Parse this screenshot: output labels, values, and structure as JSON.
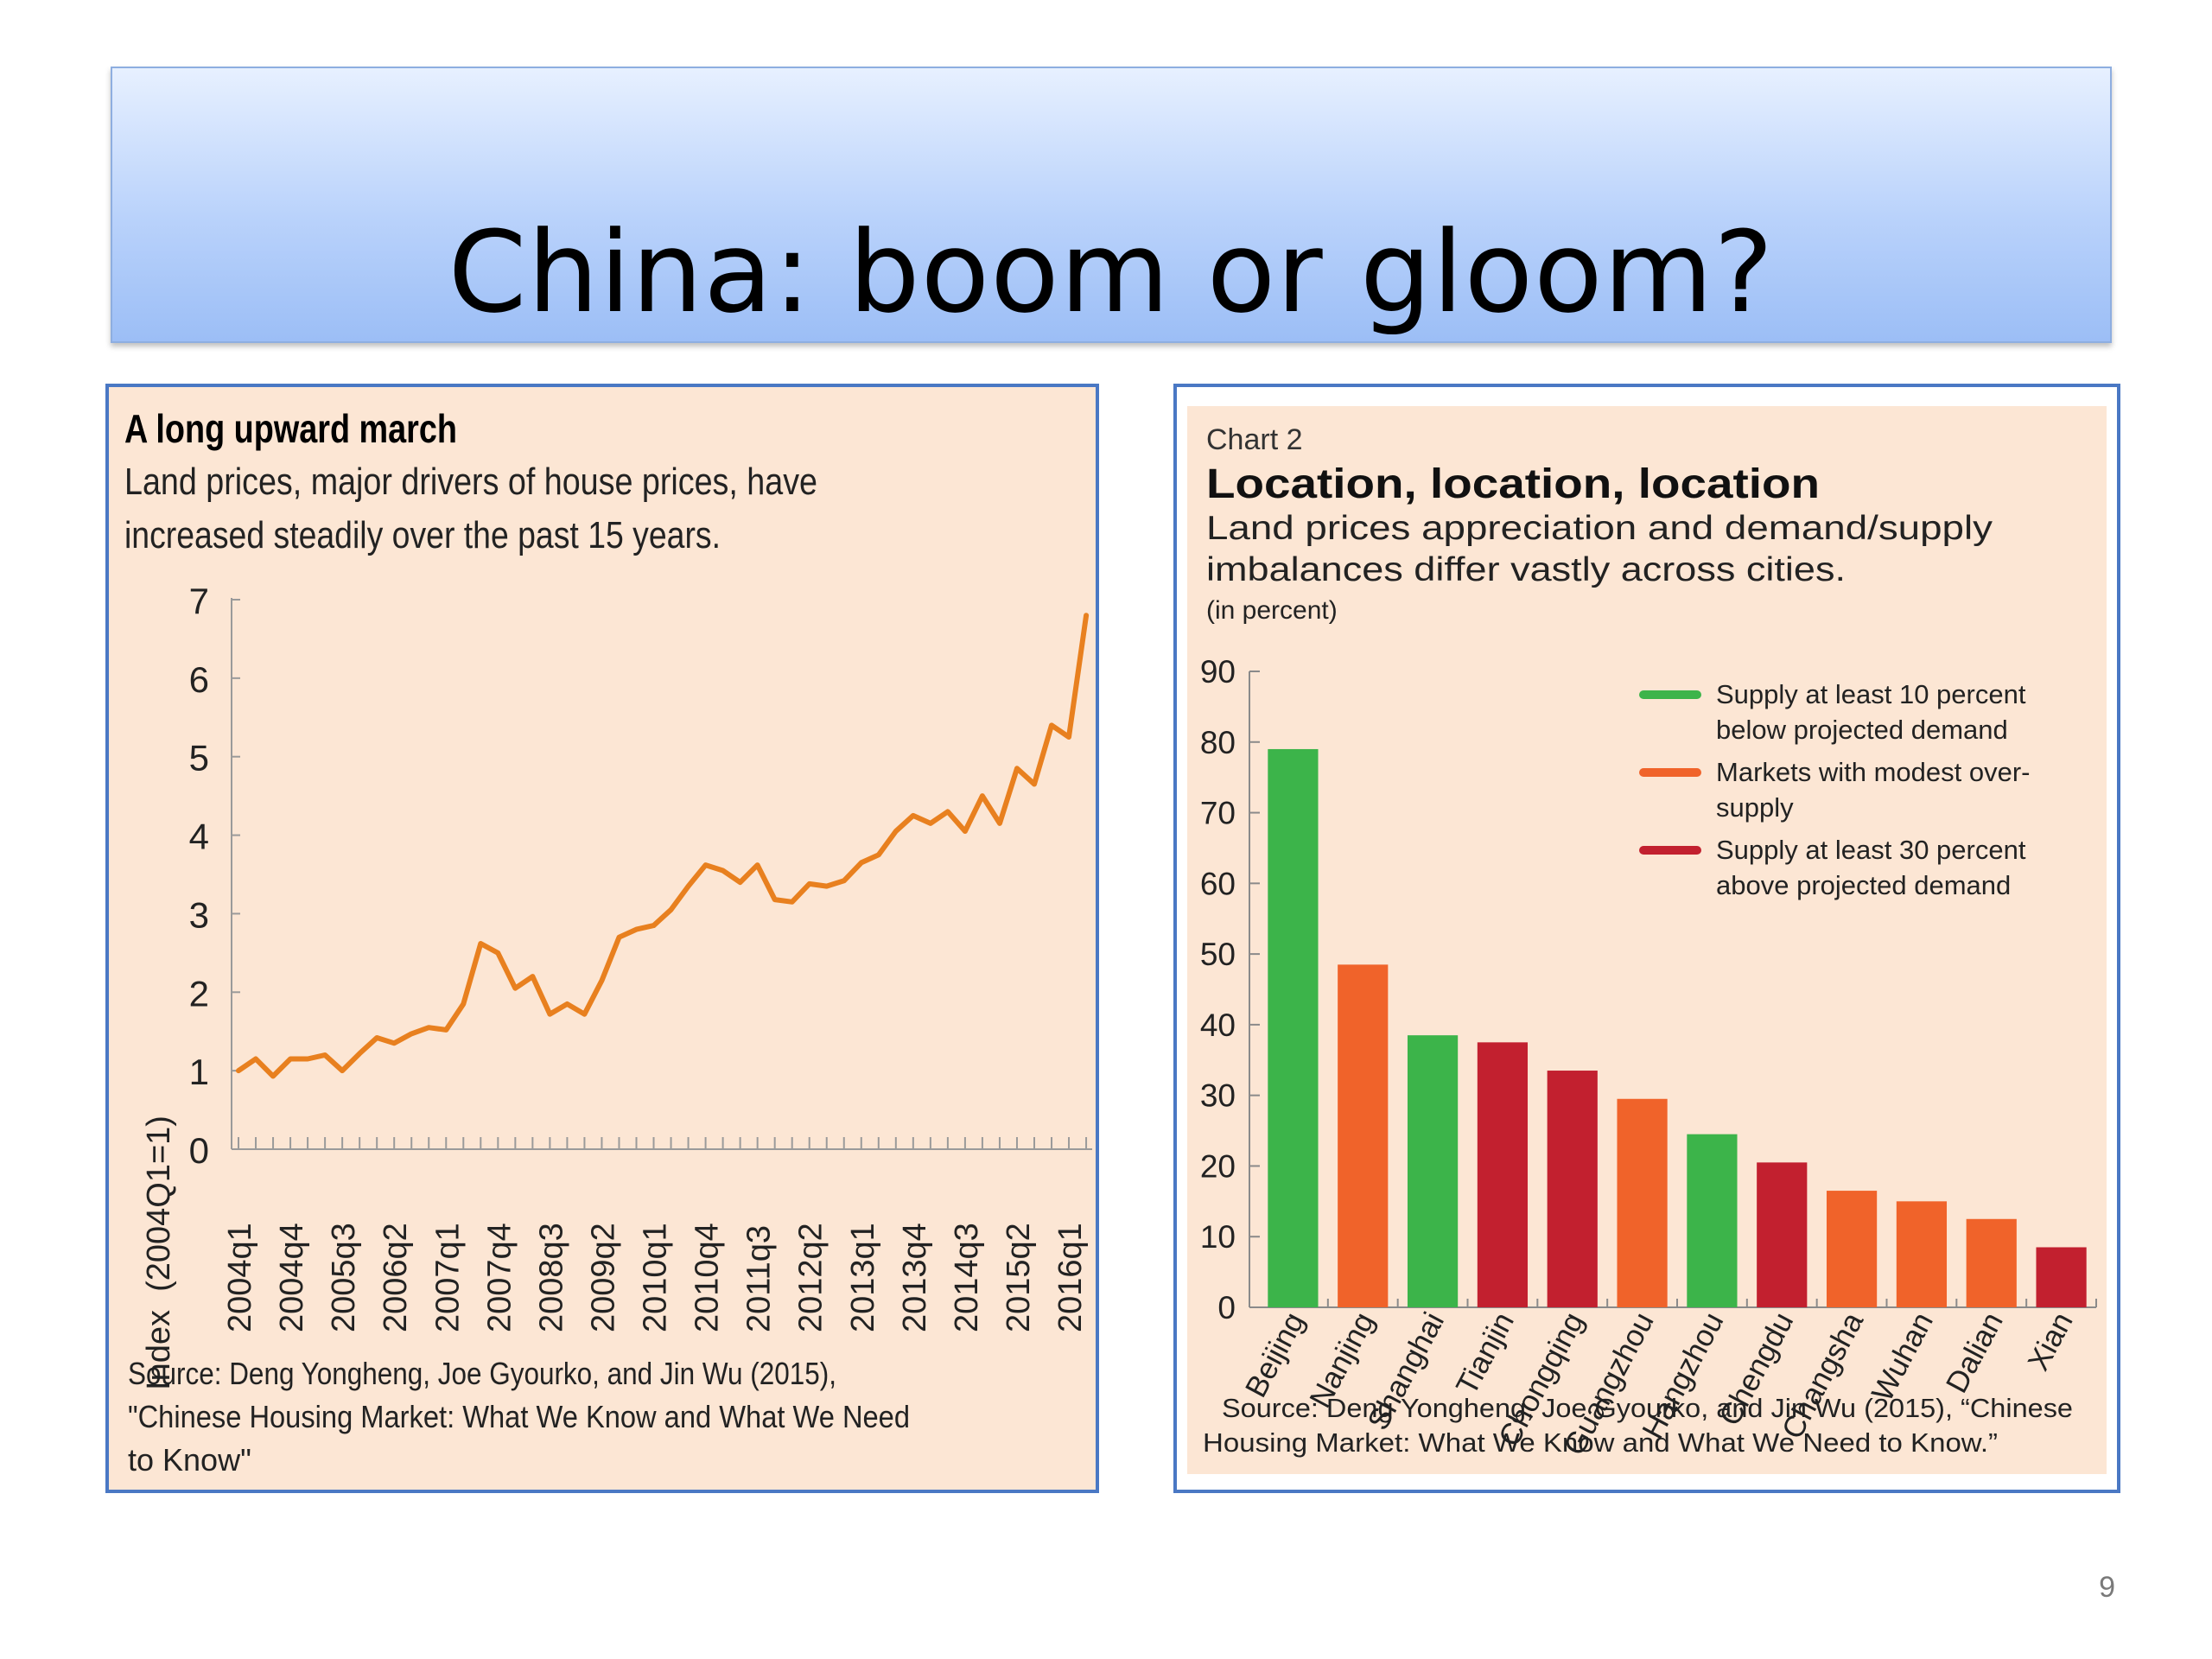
{
  "slide": {
    "title": "China: boom or gloom?",
    "page_number": "9"
  },
  "chart_data": [
    {
      "type": "line",
      "title": "A long upward march",
      "subtitle_lines": [
        "Land prices, major drivers of house prices, have",
        "increased steadily over the past 15 years."
      ],
      "ylabel": "Index  (2004Q1=1)",
      "xlabel": "",
      "ylim": [
        0,
        7
      ],
      "yticks": [
        0,
        1,
        2,
        3,
        4,
        5,
        6,
        7
      ],
      "xtick_labels": [
        "2004q1",
        "2004q4",
        "2005q3",
        "2006q2",
        "2007q1",
        "2007q4",
        "2008q3",
        "2009q2",
        "2010q1",
        "2010q4",
        "2011q3",
        "2012q2",
        "2013q1",
        "2013q4",
        "2014q3",
        "2015q2",
        "2016q1"
      ],
      "color": "#e8801f",
      "series": [
        {
          "values": [
            1.0,
            1.15,
            0.93,
            1.15,
            1.15,
            1.2,
            1.0,
            1.22,
            1.42,
            1.35,
            1.47,
            1.55,
            1.52,
            1.85,
            2.62,
            2.5,
            2.05,
            2.2,
            1.72,
            1.85,
            1.72,
            2.15,
            2.7,
            2.8,
            2.85,
            3.05,
            3.35,
            3.62,
            3.55,
            3.4,
            3.62,
            3.18,
            3.15,
            3.38,
            3.35,
            3.42,
            3.65,
            3.75,
            4.05,
            4.25,
            4.15,
            4.3,
            4.05,
            4.5,
            4.15,
            4.85,
            4.65,
            5.4,
            5.25,
            6.8
          ]
        }
      ],
      "source_lines": [
        "Source: Deng Yongheng, Joe Gyourko, and Jin Wu (2015),",
        "\"Chinese Housing Market: What We Know and What We Need",
        "to Know\""
      ]
    },
    {
      "type": "bar",
      "chart_label": "Chart 2",
      "title": "Location, location, location",
      "subtitle_lines": [
        "Land prices appreciation and demand/supply",
        "imbalances differ vastly across cities."
      ],
      "unit_note": "(in percent)",
      "ylim": [
        0,
        90
      ],
      "yticks": [
        0,
        10,
        20,
        30,
        40,
        50,
        60,
        70,
        80,
        90
      ],
      "categories": [
        "Beijing",
        "Nanjing",
        "Shanghai",
        "Tianjin",
        "Chongqing",
        "Guangzhou",
        "Hangzhou",
        "Chengdu",
        "Changsha",
        "Wuhan",
        "Dalian",
        "Xian"
      ],
      "values": [
        79,
        48.5,
        38.5,
        37.5,
        33.5,
        29.5,
        24.5,
        20.5,
        16.5,
        15,
        12.5,
        8.5
      ],
      "groups": [
        "green",
        "orange",
        "green",
        "red",
        "red",
        "orange",
        "green",
        "red",
        "orange",
        "orange",
        "orange",
        "red"
      ],
      "colors": {
        "green": "#3cb44a",
        "orange": "#f0632a",
        "red": "#c2202f"
      },
      "legend": [
        {
          "key": "green",
          "lines": [
            "Supply at least 10 percent",
            "below projected demand"
          ]
        },
        {
          "key": "orange",
          "lines": [
            "Markets with modest over-",
            "supply"
          ]
        },
        {
          "key": "red",
          "lines": [
            "Supply at least 30 percent",
            "above projected demand"
          ]
        }
      ],
      "legend_position": "top-right",
      "source_lines": [
        "Source: Deng Yongheng, Joe Gyourko, and Jin Wu (2015), “Chinese",
        "Housing Market: What We Know and What We Need to Know.”"
      ]
    }
  ]
}
